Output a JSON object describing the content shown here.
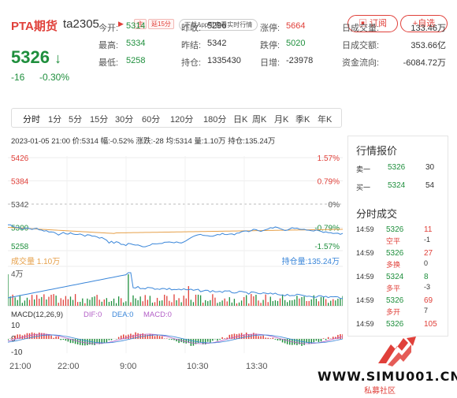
{
  "header": {
    "product": "PTA期货",
    "code": "ta2305",
    "tag_main": "主",
    "tag_delay": "延15分",
    "app_promo": "下载App可查看实时行情",
    "subscribe": "订阅",
    "add_watch": "+自选"
  },
  "price": {
    "last": "5326",
    "arrow": "↓",
    "change": "-16",
    "change_pct": "-0.30%"
  },
  "quotes": [
    {
      "l": "今开:",
      "v": "5314",
      "c": "green",
      "l2": "昨收:",
      "v2": "5296",
      "c2": "",
      "l3": "涨停:",
      "v3": "5664",
      "c3": "red",
      "l4": "日成交量:",
      "v4": "133.46万"
    },
    {
      "l": "最高:",
      "v": "5334",
      "c": "green",
      "l2": "昨结:",
      "v2": "5342",
      "c2": "",
      "l3": "跌停:",
      "v3": "5020",
      "c3": "green",
      "l4": "日成交额:",
      "v4": "353.66亿"
    },
    {
      "l": "最低:",
      "v": "5258",
      "c": "green",
      "l2": "持仓:",
      "v2": "1335430",
      "c2": "",
      "l3": "日增:",
      "v3": "-23978",
      "c3": "",
      "l4": "资金流向:",
      "v4": "-6084.72万"
    }
  ],
  "tabs": [
    "分时",
    "1分",
    "5分",
    "15分",
    "30分",
    "60分",
    "120分",
    "180分",
    "日K",
    "周K",
    "月K",
    "季K",
    "年K"
  ],
  "info": {
    "time": "2023-01-05 21:00",
    "price": "价:5314",
    "amp": "幅:-0.52%",
    "diff": "涨跌:-28",
    "avg": "均:5314",
    "vol": "量:1.10万",
    "oi": "持仓:135.24万"
  },
  "axis": {
    "p1": "5426",
    "p2": "5384",
    "p3": "5342",
    "p4": "5300",
    "p5": "5258",
    "r1": "1.57%",
    "r2": "0.79%",
    "r3": "0%",
    "r4": "-0.79%",
    "r5": "-1.57%",
    "vol_label": "成交量",
    "vol_val": "1.10万",
    "oi_label": "持仓量:",
    "oi_val": "135.24万",
    "v4": "4万"
  },
  "macd": {
    "title": "MACD(12,26,9)",
    "dif": "DIF:0",
    "dea": "DEA:0",
    "macd": "MACD:0",
    "m1": "10",
    "m2": "0",
    "m3": "-10"
  },
  "xaxis": [
    "21:00",
    "22:00",
    "9:00",
    "10:30",
    "13:30"
  ],
  "book": {
    "title": "行情报价",
    "sell_lbl": "卖一",
    "sell_p": "5326",
    "sell_v": "30",
    "buy_lbl": "买一",
    "buy_p": "5324",
    "buy_v": "54"
  },
  "ticks_title": "分时成交",
  "ticks": [
    {
      "t": "14:59",
      "p": "5326",
      "pc": "green",
      "v": "11",
      "vc": "red",
      "k": "空平",
      "d": "-1"
    },
    {
      "t": "14:59",
      "p": "5326",
      "pc": "green",
      "v": "27",
      "vc": "red",
      "k": "多换",
      "d": "0"
    },
    {
      "t": "14:59",
      "p": "5324",
      "pc": "green",
      "v": "8",
      "vc": "green",
      "k": "多平",
      "d": "-3"
    },
    {
      "t": "14:59",
      "p": "5326",
      "pc": "green",
      "v": "69",
      "vc": "red",
      "k": "多开",
      "d": "7"
    },
    {
      "t": "14:59",
      "p": "5326",
      "pc": "green",
      "v": "105",
      "vc": "red",
      "k": "",
      "d": ""
    }
  ],
  "watermark": {
    "site": "WWW.SIMU001.CN",
    "sub": "私募社区"
  },
  "colors": {
    "up": "#e0403a",
    "down": "#1f8f3d",
    "line": "#3a86d9",
    "avg": "#e6a04a"
  }
}
